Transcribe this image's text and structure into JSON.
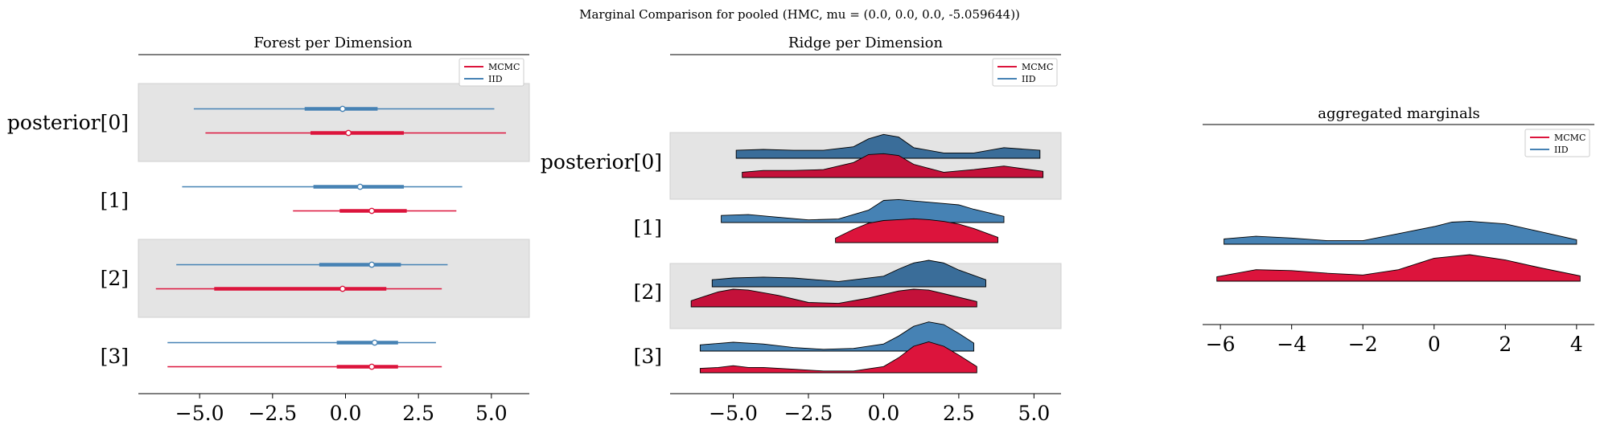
{
  "figure": {
    "title": "Marginal Comparison for pooled (HMC, mu = (0.0, 0.0, 0.0, -5.059644))"
  },
  "colors": {
    "mcmc": "#dc143c",
    "mcmc_dark": "#c4113a",
    "iid": "#4682b4",
    "iid_dark": "#3a6d99",
    "band": "#e4e4e4",
    "outline": "#000000"
  },
  "chart_data": [
    {
      "type": "forest",
      "title": "Forest per Dimension",
      "xlim": [
        -7.1,
        6.3
      ],
      "xticks": [
        -5.0,
        -2.5,
        0.0,
        2.5,
        5.0
      ],
      "xtick_labels": [
        "−5.0",
        "−2.5",
        "0.0",
        "2.5",
        "5.0"
      ],
      "grid": false,
      "legend": {
        "placement": "top-right",
        "entries": [
          "MCMC",
          "IID"
        ]
      },
      "categories": [
        "posterior[0]",
        "[1]",
        "[2]",
        "[3]"
      ],
      "shaded_rows": [
        0,
        2
      ],
      "series": [
        {
          "name": "IID",
          "intervals": [
            {
              "hdi94": [
                -5.2,
                5.1
              ],
              "hdi50": [
                -1.4,
                1.1
              ],
              "median": -0.1
            },
            {
              "hdi94": [
                -5.6,
                4.0
              ],
              "hdi50": [
                -1.1,
                2.0
              ],
              "median": 0.5
            },
            {
              "hdi94": [
                -5.8,
                3.5
              ],
              "hdi50": [
                -0.9,
                1.9
              ],
              "median": 0.9
            },
            {
              "hdi94": [
                -6.1,
                3.1
              ],
              "hdi50": [
                -0.3,
                1.8
              ],
              "median": 1.0
            }
          ]
        },
        {
          "name": "MCMC",
          "intervals": [
            {
              "hdi94": [
                -4.8,
                5.5
              ],
              "hdi50": [
                -1.2,
                2.0
              ],
              "median": 0.1
            },
            {
              "hdi94": [
                -1.8,
                3.8
              ],
              "hdi50": [
                -0.2,
                2.1
              ],
              "median": 0.9
            },
            {
              "hdi94": [
                -6.5,
                3.3
              ],
              "hdi50": [
                -4.5,
                1.4
              ],
              "median": -0.1
            },
            {
              "hdi94": [
                -6.1,
                3.3
              ],
              "hdi50": [
                -0.3,
                1.8
              ],
              "median": 0.9
            }
          ]
        }
      ]
    },
    {
      "type": "ridge",
      "title": "Ridge per Dimension",
      "xlim": [
        -7.1,
        5.9
      ],
      "xticks": [
        -5.0,
        -2.5,
        0.0,
        2.5,
        5.0
      ],
      "xtick_labels": [
        "−5.0",
        "−2.5",
        "0.0",
        "2.5",
        "5.0"
      ],
      "grid": false,
      "legend": {
        "placement": "top-right",
        "entries": [
          "MCMC",
          "IID"
        ]
      },
      "categories": [
        "posterior[0]",
        "[1]",
        "[2]",
        "[3]"
      ],
      "shaded_rows": [
        0,
        2
      ],
      "density_max": 0.3,
      "series": [
        {
          "name": "IID",
          "densities": [
            {
              "x": [
                -4.9,
                -4.0,
                -3.0,
                -2.0,
                -1.0,
                -0.5,
                0.0,
                0.5,
                1.0,
                2.0,
                3.0,
                4.0,
                5.2
              ],
              "y": [
                0.09,
                0.1,
                0.09,
                0.09,
                0.13,
                0.22,
                0.27,
                0.24,
                0.12,
                0.06,
                0.06,
                0.12,
                0.09
              ]
            },
            {
              "x": [
                -5.4,
                -4.5,
                -3.5,
                -2.5,
                -1.5,
                -0.5,
                0.0,
                0.5,
                1.5,
                2.5,
                3.0,
                4.0
              ],
              "y": [
                0.08,
                0.09,
                0.06,
                0.03,
                0.04,
                0.14,
                0.25,
                0.26,
                0.23,
                0.2,
                0.15,
                0.07
              ]
            },
            {
              "x": [
                -5.7,
                -5.0,
                -4.0,
                -3.0,
                -1.5,
                0.0,
                0.5,
                1.0,
                1.5,
                2.0,
                2.5,
                3.4
              ],
              "y": [
                0.08,
                0.1,
                0.11,
                0.1,
                0.06,
                0.12,
                0.2,
                0.27,
                0.3,
                0.27,
                0.19,
                0.08
              ]
            },
            {
              "x": [
                -6.1,
                -5.0,
                -4.0,
                -3.0,
                -2.0,
                -1.0,
                0.0,
                0.5,
                1.0,
                1.5,
                2.0,
                2.5,
                3.0
              ],
              "y": [
                0.07,
                0.1,
                0.08,
                0.04,
                0.02,
                0.03,
                0.08,
                0.17,
                0.28,
                0.33,
                0.3,
                0.2,
                0.09
              ]
            }
          ]
        },
        {
          "name": "MCMC",
          "densities": [
            {
              "x": [
                -4.7,
                -4.0,
                -3.0,
                -2.0,
                -1.0,
                -0.5,
                0.0,
                0.5,
                1.0,
                2.0,
                3.0,
                4.0,
                5.3
              ],
              "y": [
                0.06,
                0.08,
                0.08,
                0.09,
                0.17,
                0.26,
                0.27,
                0.25,
                0.15,
                0.06,
                0.09,
                0.13,
                0.07
              ]
            },
            {
              "x": [
                -1.6,
                -1.0,
                -0.5,
                0.0,
                0.5,
                1.0,
                1.5,
                2.0,
                2.5,
                3.0,
                3.8
              ],
              "y": [
                0.05,
                0.15,
                0.22,
                0.25,
                0.26,
                0.27,
                0.26,
                0.24,
                0.21,
                0.16,
                0.06
              ]
            },
            {
              "x": [
                -6.4,
                -5.5,
                -5.0,
                -4.5,
                -3.5,
                -2.5,
                -1.5,
                -0.5,
                0.5,
                1.0,
                1.5,
                2.0,
                3.1
              ],
              "y": [
                0.07,
                0.17,
                0.2,
                0.19,
                0.13,
                0.05,
                0.04,
                0.1,
                0.18,
                0.2,
                0.19,
                0.15,
                0.06
              ]
            },
            {
              "x": [
                -6.1,
                -5.5,
                -5.0,
                -4.5,
                -4.0,
                -3.0,
                -2.0,
                -1.0,
                0.0,
                0.5,
                1.0,
                1.5,
                2.0,
                2.5,
                3.1
              ],
              "y": [
                0.05,
                0.06,
                0.08,
                0.06,
                0.06,
                0.04,
                0.02,
                0.02,
                0.07,
                0.17,
                0.3,
                0.35,
                0.3,
                0.2,
                0.07
              ]
            }
          ]
        }
      ]
    },
    {
      "type": "ridge",
      "title": "aggregated marginals",
      "xlim": [
        -6.5,
        4.5
      ],
      "xticks": [
        -6,
        -4,
        -2,
        0,
        2,
        4
      ],
      "xtick_labels": [
        "−6",
        "−4",
        "−2",
        "0",
        "2",
        "4"
      ],
      "grid": false,
      "legend": {
        "placement": "top-right",
        "entries": [
          "MCMC",
          "IID"
        ]
      },
      "categories": [],
      "density_max": 0.3,
      "series": [
        {
          "name": "IID",
          "x": [
            -5.9,
            -5.0,
            -4.0,
            -3.0,
            -2.0,
            -1.0,
            0.0,
            0.5,
            1.0,
            2.0,
            3.0,
            4.0
          ],
          "y": [
            0.06,
            0.09,
            0.07,
            0.04,
            0.04,
            0.12,
            0.2,
            0.25,
            0.26,
            0.23,
            0.14,
            0.05
          ]
        },
        {
          "name": "MCMC",
          "x": [
            -6.1,
            -5.0,
            -4.0,
            -3.0,
            -2.0,
            -1.0,
            0.0,
            1.0,
            2.0,
            3.0,
            4.1
          ],
          "y": [
            0.05,
            0.13,
            0.12,
            0.09,
            0.07,
            0.13,
            0.26,
            0.3,
            0.24,
            0.15,
            0.06
          ]
        }
      ]
    }
  ]
}
